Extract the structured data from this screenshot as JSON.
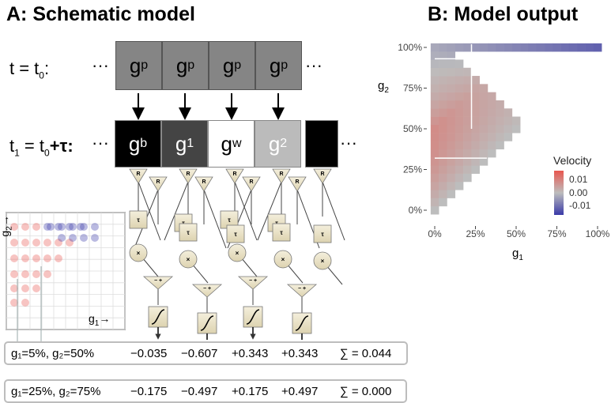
{
  "panelA": {
    "title": "A: Schematic model",
    "row0_label": "t = t",
    "row0_sub": "0",
    "row0_colon": ":",
    "row1_label": "t",
    "row1_sub": "1",
    "row1_eq": " = t",
    "row1_sub2": "0",
    "row1_tau": "+τ:",
    "ellipsis": "···",
    "top_cells": [
      {
        "main": "g",
        "sub": "p"
      },
      {
        "main": "g",
        "sub": "p"
      },
      {
        "main": "g",
        "sub": "p"
      },
      {
        "main": "g",
        "sub": "p"
      }
    ],
    "bottom_cells": [
      {
        "main": "g",
        "sub": "b",
        "fill": "#000000",
        "text": "#ffffff"
      },
      {
        "main": "g",
        "sub": "1",
        "fill": "#444444",
        "text": "#ffffff"
      },
      {
        "main": "g",
        "sub": "w",
        "fill": "#ffffff",
        "text": "#000000"
      },
      {
        "main": "g",
        "sub": "2",
        "fill": "#bbbbbb",
        "text": "#ffffff"
      },
      {
        "main": "",
        "sub": "",
        "fill": "#000000",
        "text": "#ffffff"
      }
    ],
    "node_labels": {
      "receptor": "R",
      "delay": "τ",
      "multiply": "×",
      "sum": "− +"
    },
    "inset": {
      "x_label": "g",
      "x_sub": "1",
      "y_label": "g",
      "y_sub": "2",
      "arrow": "→"
    },
    "rows": [
      {
        "label": "g₁=5%, g₂=50%",
        "values": [
          "−0.035",
          "−0.607",
          "+0.343",
          "+0.343"
        ],
        "sum": "∑ = 0.044"
      },
      {
        "label": "g₁=25%, g₂=75%",
        "values": [
          "−0.175",
          "−0.497",
          "+0.175",
          "+0.497"
        ],
        "sum": "∑ = 0.000"
      }
    ]
  },
  "panelB": {
    "title": "B: Model output",
    "x_ticks": [
      "0%",
      "25%",
      "50%",
      "75%",
      "100%"
    ],
    "y_ticks": [
      "0%",
      "25%",
      "50%",
      "75%",
      "100%"
    ],
    "x_label": "g",
    "x_sub": "1",
    "y_label": "g",
    "y_sub": "2",
    "legend": {
      "title": "Velocity",
      "ticks": [
        "0.01",
        "0.00",
        "-0.01"
      ]
    },
    "colors": {
      "positive": "#e8574f",
      "zero": "#bdbdbd",
      "negative": "#3a3aa8"
    }
  }
}
